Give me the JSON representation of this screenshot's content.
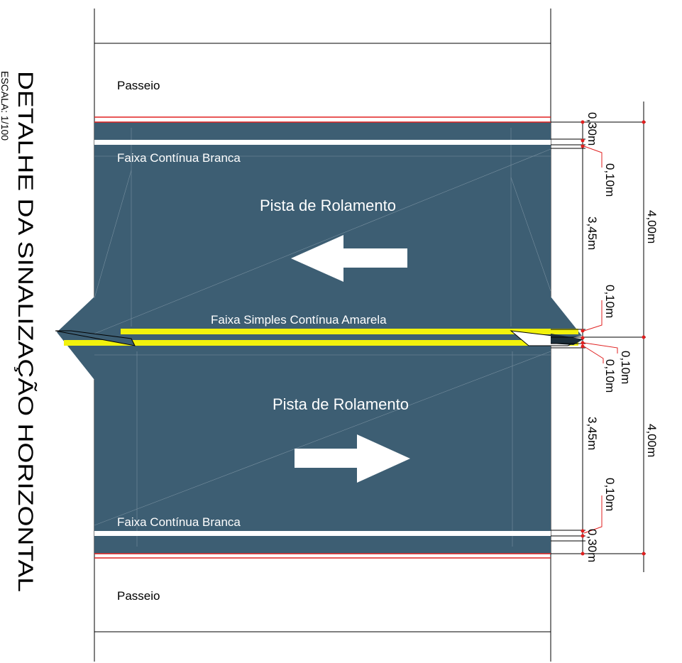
{
  "title": "DETALHE DA SINALIZAÇÃO HORIZONTAL",
  "scale": "ESCALA: 1/100",
  "labels": {
    "sidewalk_top": "Passeio",
    "sidewalk_bottom": "Passeio",
    "white_line_top": "Faixa Contínua Branca",
    "white_line_bottom": "Faixa Contínua Branca",
    "yellow_line": "Faixa Simples Contínua Amarela",
    "lane_top": "Pista de Rolamento",
    "lane_bottom": "Pista de Rolamento"
  },
  "dimensions": {
    "inner_top_offset": "0,30m",
    "inner_top_line": "0,10m",
    "inner_top_lane": "3,45m",
    "inner_center_top_line": "0,10m",
    "inner_center_gap": "0,10m",
    "inner_center_bottom_line": "0,10m",
    "inner_bottom_lane": "3,45m",
    "inner_bottom_line": "0,10m",
    "inner_bottom_offset": "0,30m",
    "outer_top": "4,00m",
    "outer_bottom": "4,00m"
  },
  "colors": {
    "asphalt": "#3d5e73",
    "yellow_line": "#f2f20c",
    "white_line": "#ffffff",
    "curb_line": "#e02020",
    "dimension_point": "#e02020",
    "outline": "#000000"
  }
}
